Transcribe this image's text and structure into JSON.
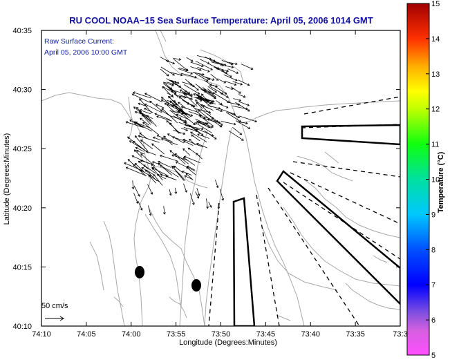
{
  "title": "RU COOL  NOAA−15  Sea Surface Temperature:  April 05, 2006 1014 GMT",
  "annotation": {
    "line1": "Raw Surface Current:",
    "line2": "April 05, 2006 10:00 GMT"
  },
  "axes": {
    "xlabel": "Longitude (Degrees:Minutes)",
    "ylabel": "Latitude (Degrees:Minutes)",
    "x_ticks": [
      "74:10",
      "74:05",
      "74:00",
      "73:55",
      "73:50",
      "73:45",
      "73:40",
      "73:35",
      "73:3"
    ],
    "y_ticks": [
      "40:35",
      "40:30",
      "40:25",
      "40:20",
      "40:15",
      "40:10"
    ]
  },
  "colorbar": {
    "label": "Temperature (°C)",
    "ticks": [
      "15",
      "14",
      "13",
      "12",
      "11",
      "10",
      "9",
      "8",
      "7",
      "6",
      "5"
    ],
    "min": 5,
    "max": 15
  },
  "scale": {
    "label": "50 cm/s"
  },
  "colors": {
    "title": "#1010a0",
    "annotation": "#1020a0",
    "land_contour": "#a8a8a8",
    "vectors": "#000000"
  }
}
